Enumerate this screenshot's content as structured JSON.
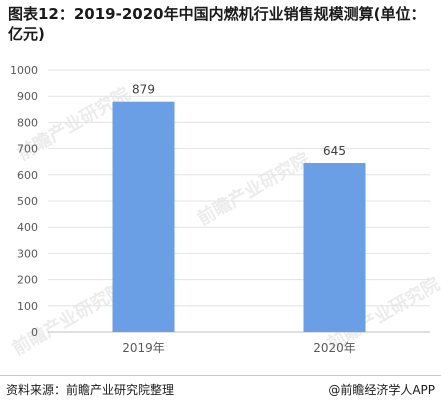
{
  "header": {
    "title": "图表12：2019-2020年中国内燃机行业销售规模测算(单位：亿元)"
  },
  "watermark": {
    "text": "前瞻产业研究院"
  },
  "footer": {
    "source": "资料来源：前瞻产业研究院整理",
    "credit": "@前瞻经济学人APP"
  },
  "colors": {
    "bar": "#6a9fe5",
    "grid": "#e3e3e3",
    "axis": "#bfbfbf",
    "text": "#595959"
  },
  "chart_data": {
    "type": "bar",
    "title": "图表12：2019-2020年中国内燃机行业销售规模测算(单位：亿元)",
    "categories": [
      "2019年",
      "2020年"
    ],
    "values": [
      879,
      645
    ],
    "data_labels": [
      "879",
      "645"
    ],
    "ylim": [
      0,
      1000
    ],
    "yticks": [
      "0",
      "100",
      "200",
      "300",
      "400",
      "500",
      "600",
      "700",
      "800",
      "900",
      "1000"
    ],
    "xlabel": "",
    "ylabel": "",
    "grid": true,
    "legend": "none"
  }
}
